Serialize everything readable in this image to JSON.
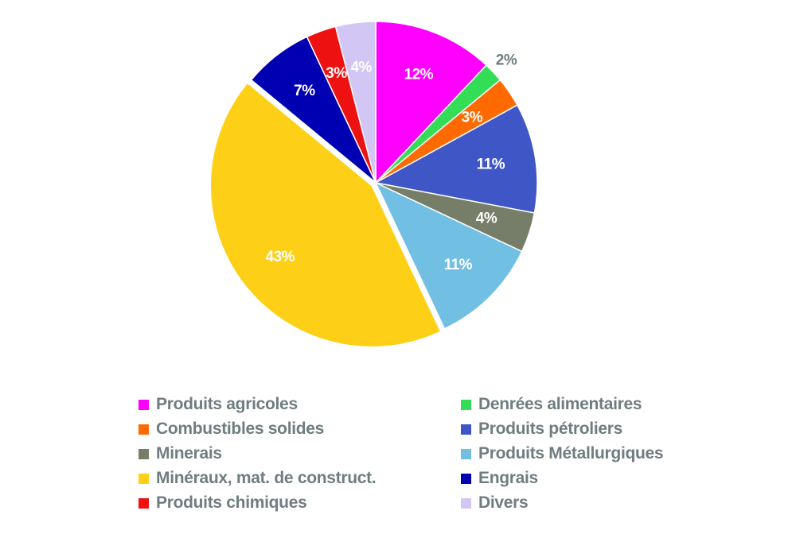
{
  "chart_data": {
    "type": "pie",
    "title": "",
    "slices": [
      {
        "name": "Produits agricoles",
        "value": 12,
        "label": "12%",
        "color": "#ff00ff",
        "label_color": "#ffffff"
      },
      {
        "name": "Denrées alimentaires",
        "value": 2,
        "label": "2%",
        "color": "#33dd55",
        "label_color": "#6f7d80"
      },
      {
        "name": "Combustibles solides",
        "value": 3,
        "label": "3%",
        "color": "#ff6a00",
        "label_color": "#ffffff"
      },
      {
        "name": "Produits pétroliers",
        "value": 11,
        "label": "11%",
        "color": "#3f56c6",
        "label_color": "#ffffff"
      },
      {
        "name": "Minerais",
        "value": 4,
        "label": "4%",
        "color": "#767d68",
        "label_color": "#ffffff"
      },
      {
        "name": "Produits Métallurgiques",
        "value": 11,
        "label": "11%",
        "color": "#72bfe4",
        "label_color": "#ffffff"
      },
      {
        "name": "Minéraux, mat. de construct.",
        "value": 43,
        "label": "43%",
        "color": "#fdd017",
        "label_color": "#ffffff"
      },
      {
        "name": "Engrais",
        "value": 7,
        "label": "7%",
        "color": "#0000b3",
        "label_color": "#ffffff"
      },
      {
        "name": "Produits chimiques",
        "value": 3,
        "label": "3%",
        "color": "#ee1111",
        "label_color": "#ffffff"
      },
      {
        "name": "Divers",
        "value": 4,
        "label": "4%",
        "color": "#d2c6f4",
        "label_color": "#ffffff"
      }
    ],
    "legend_position": "bottom",
    "legend_order": [
      "Produits agricoles",
      "Denrées alimentaires",
      "Combustibles solides",
      "Produits pétroliers",
      "Minerais",
      "Produits Métallurgiques",
      "Minéraux, mat. de construct.",
      "Engrais",
      "Produits chimiques",
      "Divers"
    ],
    "exploded_slice": "Minéraux, mat. de construct."
  },
  "colors": {
    "legend_text": "#6f7d80",
    "background": "#ffffff"
  }
}
